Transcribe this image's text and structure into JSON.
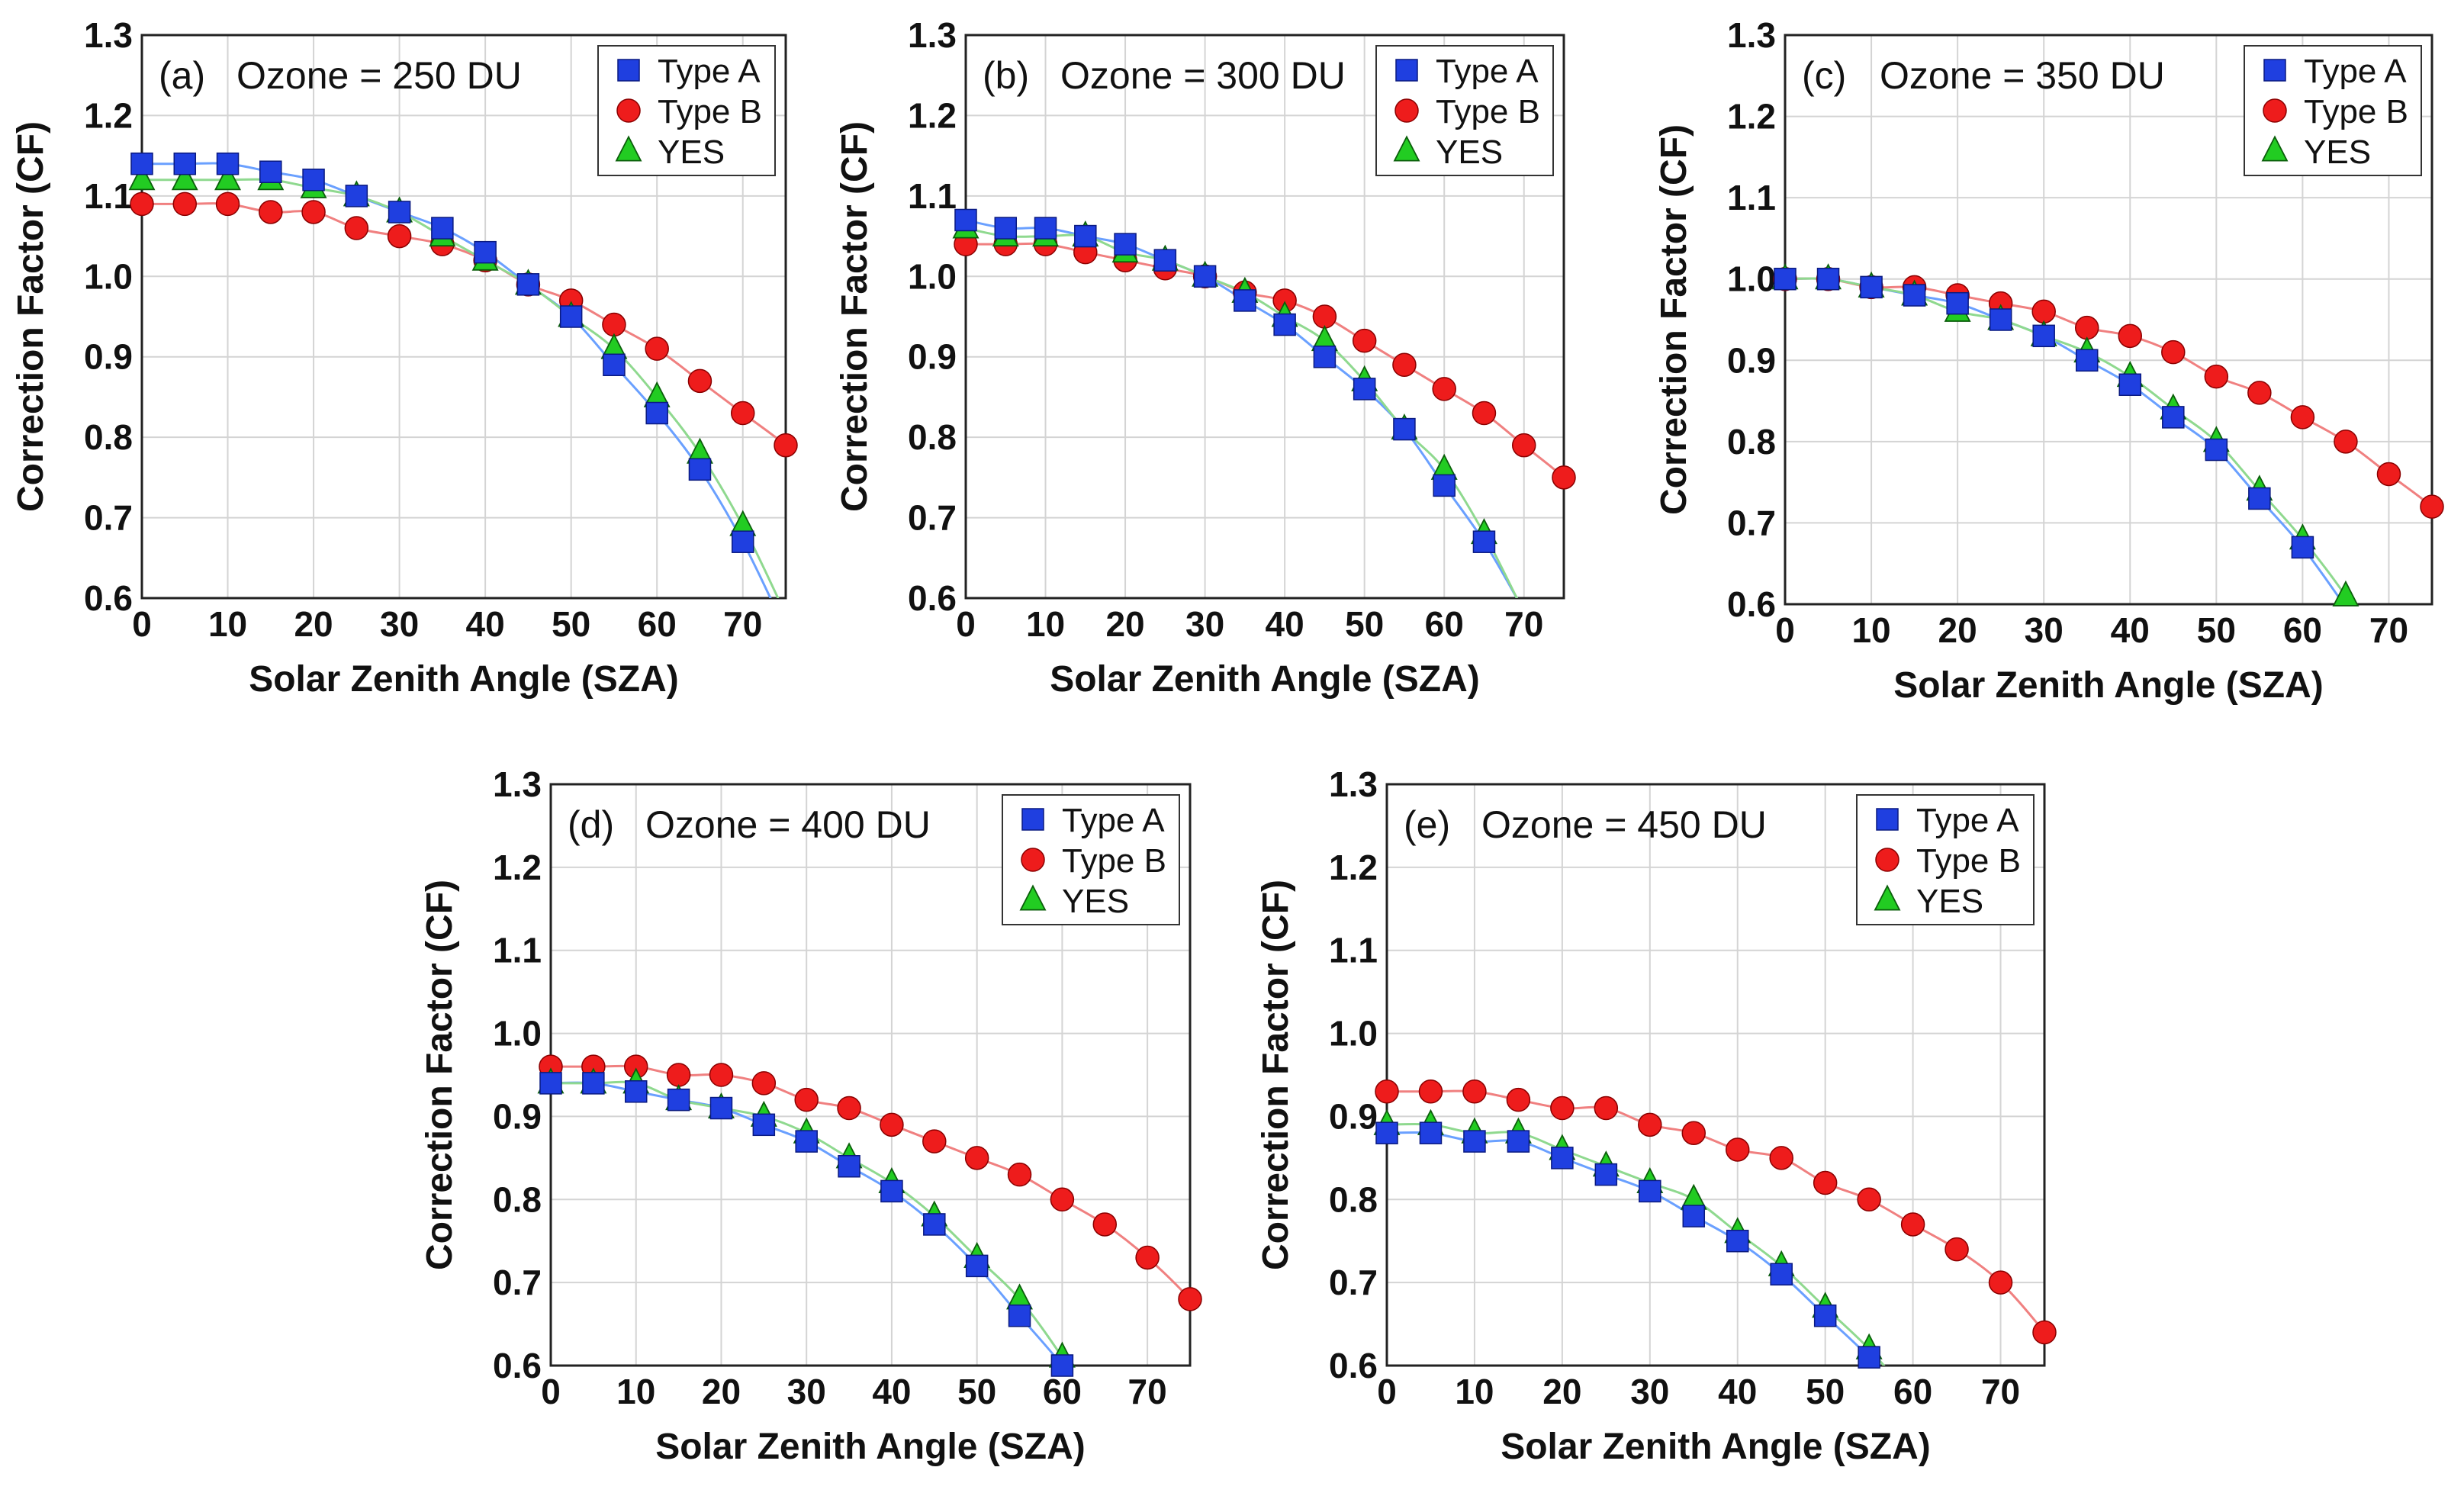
{
  "chart_data": [
    {
      "type": "line",
      "panel_label": "(a)",
      "title": "Ozone = 250 DU",
      "xlabel": "Solar Zenith Angle (SZA)",
      "ylabel": "Correction Factor (CF)",
      "xlim": [
        0,
        75
      ],
      "ylim": [
        0.6,
        1.3
      ],
      "xticks": [
        "0",
        "10",
        "20",
        "30",
        "40",
        "50",
        "60",
        "70"
      ],
      "yticks": [
        "0.6",
        "0.7",
        "0.8",
        "0.9",
        "1.0",
        "1.1",
        "1.2",
        "1.3"
      ],
      "grid": true,
      "legend_position": "top-right",
      "series": [
        {
          "name": "Type A",
          "marker": "square",
          "color": "#1f3fe0",
          "line_color": "#6aa0ff",
          "x": [
            0,
            5,
            10,
            15,
            20,
            25,
            30,
            35,
            40,
            45,
            50,
            55,
            60,
            65,
            70
          ],
          "y": [
            1.14,
            1.14,
            1.14,
            1.13,
            1.12,
            1.1,
            1.08,
            1.06,
            1.03,
            0.99,
            0.95,
            0.89,
            0.83,
            0.76,
            0.67
          ]
        },
        {
          "name": "Type B",
          "marker": "circle",
          "color": "#ee1c1c",
          "line_color": "#f08080",
          "x": [
            0,
            5,
            10,
            15,
            20,
            25,
            30,
            35,
            40,
            45,
            50,
            55,
            60,
            65,
            70,
            75
          ],
          "y": [
            1.09,
            1.09,
            1.09,
            1.08,
            1.08,
            1.06,
            1.05,
            1.04,
            1.02,
            0.99,
            0.97,
            0.94,
            0.91,
            0.87,
            0.83,
            0.79
          ]
        },
        {
          "name": "YES",
          "marker": "triangle",
          "color": "#22cc22",
          "line_color": "#8fd98f",
          "x": [
            0,
            5,
            10,
            15,
            20,
            25,
            30,
            35,
            40,
            45,
            50,
            55,
            60,
            65,
            70
          ],
          "y": [
            1.12,
            1.12,
            1.12,
            1.12,
            1.11,
            1.1,
            1.08,
            1.05,
            1.02,
            0.99,
            0.95,
            0.91,
            0.85,
            0.78,
            0.69
          ]
        }
      ]
    },
    {
      "type": "line",
      "panel_label": "(b)",
      "title": "Ozone = 300 DU",
      "xlabel": "Solar Zenith Angle (SZA)",
      "ylabel": "Correction Factor (CF)",
      "xlim": [
        0,
        75
      ],
      "ylim": [
        0.6,
        1.3
      ],
      "xticks": [
        "0",
        "10",
        "20",
        "30",
        "40",
        "50",
        "60",
        "70"
      ],
      "yticks": [
        "0.6",
        "0.7",
        "0.8",
        "0.9",
        "1.0",
        "1.1",
        "1.2",
        "1.3"
      ],
      "grid": true,
      "legend_position": "top-right",
      "series": [
        {
          "name": "Type A",
          "marker": "square",
          "color": "#1f3fe0",
          "line_color": "#6aa0ff",
          "x": [
            0,
            5,
            10,
            15,
            20,
            25,
            30,
            35,
            40,
            45,
            50,
            55,
            60,
            65
          ],
          "y": [
            1.07,
            1.06,
            1.06,
            1.05,
            1.04,
            1.02,
            1.0,
            0.97,
            0.94,
            0.9,
            0.86,
            0.81,
            0.74,
            0.67
          ]
        },
        {
          "name": "Type B",
          "marker": "circle",
          "color": "#ee1c1c",
          "line_color": "#f08080",
          "x": [
            0,
            5,
            10,
            15,
            20,
            25,
            30,
            35,
            40,
            45,
            50,
            55,
            60,
            65,
            70,
            75
          ],
          "y": [
            1.04,
            1.04,
            1.04,
            1.03,
            1.02,
            1.01,
            1.0,
            0.98,
            0.97,
            0.95,
            0.92,
            0.89,
            0.86,
            0.83,
            0.79,
            0.75
          ]
        },
        {
          "name": "YES",
          "marker": "triangle",
          "color": "#22cc22",
          "line_color": "#8fd98f",
          "x": [
            0,
            5,
            10,
            15,
            20,
            25,
            30,
            35,
            40,
            45,
            50,
            55,
            60,
            65
          ],
          "y": [
            1.06,
            1.05,
            1.05,
            1.05,
            1.03,
            1.02,
            1.0,
            0.98,
            0.95,
            0.92,
            0.87,
            0.81,
            0.76,
            0.68
          ]
        }
      ]
    },
    {
      "type": "line",
      "panel_label": "(c)",
      "title": "Ozone = 350 DU",
      "xlabel": "Solar Zenith Angle (SZA)",
      "ylabel": "Correction Factor (CF)",
      "xlim": [
        0,
        75
      ],
      "ylim": [
        0.6,
        1.3
      ],
      "xticks": [
        "0",
        "10",
        "20",
        "30",
        "40",
        "50",
        "60",
        "70"
      ],
      "yticks": [
        "0.6",
        "0.7",
        "0.8",
        "0.9",
        "1.0",
        "1.1",
        "1.2",
        "1.3"
      ],
      "grid": true,
      "legend_position": "top-right",
      "series": [
        {
          "name": "Type A",
          "marker": "square",
          "color": "#1f3fe0",
          "line_color": "#6aa0ff",
          "x": [
            0,
            5,
            10,
            15,
            20,
            25,
            30,
            35,
            40,
            45,
            50,
            55,
            60
          ],
          "y": [
            1.0,
            1.0,
            0.99,
            0.98,
            0.97,
            0.95,
            0.93,
            0.9,
            0.87,
            0.83,
            0.79,
            0.73,
            0.67
          ]
        },
        {
          "name": "Type B",
          "marker": "circle",
          "color": "#ee1c1c",
          "line_color": "#f08080",
          "x": [
            0,
            5,
            10,
            15,
            20,
            25,
            30,
            35,
            40,
            45,
            50,
            55,
            60,
            65,
            70,
            75
          ],
          "y": [
            1.0,
            1.0,
            0.99,
            0.99,
            0.98,
            0.97,
            0.96,
            0.94,
            0.93,
            0.91,
            0.88,
            0.86,
            0.83,
            0.8,
            0.76,
            0.72
          ]
        },
        {
          "name": "YES",
          "marker": "triangle",
          "color": "#22cc22",
          "line_color": "#8fd98f",
          "x": [
            0,
            5,
            10,
            15,
            20,
            25,
            30,
            35,
            40,
            45,
            50,
            55,
            60,
            65
          ],
          "y": [
            1.0,
            1.0,
            0.99,
            0.98,
            0.96,
            0.95,
            0.93,
            0.91,
            0.88,
            0.84,
            0.8,
            0.74,
            0.68,
            0.61
          ]
        }
      ]
    },
    {
      "type": "line",
      "panel_label": "(d)",
      "title": "Ozone = 400 DU",
      "xlabel": "Solar Zenith Angle (SZA)",
      "ylabel": "Correction Factor (CF)",
      "xlim": [
        0,
        75
      ],
      "ylim": [
        0.6,
        1.3
      ],
      "xticks": [
        "0",
        "10",
        "20",
        "30",
        "40",
        "50",
        "60",
        "70"
      ],
      "yticks": [
        "0.6",
        "0.7",
        "0.8",
        "0.9",
        "1.0",
        "1.1",
        "1.2",
        "1.3"
      ],
      "grid": true,
      "legend_position": "top-right",
      "series": [
        {
          "name": "Type A",
          "marker": "square",
          "color": "#1f3fe0",
          "line_color": "#6aa0ff",
          "x": [
            0,
            5,
            10,
            15,
            20,
            25,
            30,
            35,
            40,
            45,
            50,
            55,
            60
          ],
          "y": [
            0.94,
            0.94,
            0.93,
            0.92,
            0.91,
            0.89,
            0.87,
            0.84,
            0.81,
            0.77,
            0.72,
            0.66,
            0.6
          ]
        },
        {
          "name": "Type B",
          "marker": "circle",
          "color": "#ee1c1c",
          "line_color": "#f08080",
          "x": [
            0,
            5,
            10,
            15,
            20,
            25,
            30,
            35,
            40,
            45,
            50,
            55,
            60,
            65,
            70,
            75
          ],
          "y": [
            0.96,
            0.96,
            0.96,
            0.95,
            0.95,
            0.94,
            0.92,
            0.91,
            0.89,
            0.87,
            0.85,
            0.83,
            0.8,
            0.77,
            0.73,
            0.68
          ]
        },
        {
          "name": "YES",
          "marker": "triangle",
          "color": "#22cc22",
          "line_color": "#8fd98f",
          "x": [
            0,
            5,
            10,
            15,
            20,
            25,
            30,
            35,
            40,
            45,
            50,
            55,
            60
          ],
          "y": [
            0.94,
            0.94,
            0.94,
            0.92,
            0.91,
            0.9,
            0.88,
            0.85,
            0.82,
            0.78,
            0.73,
            0.68,
            0.61
          ]
        }
      ]
    },
    {
      "type": "line",
      "panel_label": "(e)",
      "title": "Ozone = 450 DU",
      "xlabel": "Solar Zenith Angle (SZA)",
      "ylabel": "Correction Factor (CF)",
      "xlim": [
        0,
        75
      ],
      "ylim": [
        0.6,
        1.3
      ],
      "xticks": [
        "0",
        "10",
        "20",
        "30",
        "40",
        "50",
        "60",
        "70"
      ],
      "yticks": [
        "0.6",
        "0.7",
        "0.8",
        "0.9",
        "1.0",
        "1.1",
        "1.2",
        "1.3"
      ],
      "grid": true,
      "legend_position": "top-right",
      "series": [
        {
          "name": "Type A",
          "marker": "square",
          "color": "#1f3fe0",
          "line_color": "#6aa0ff",
          "x": [
            0,
            5,
            10,
            15,
            20,
            25,
            30,
            35,
            40,
            45,
            50,
            55
          ],
          "y": [
            0.88,
            0.88,
            0.87,
            0.87,
            0.85,
            0.83,
            0.81,
            0.78,
            0.75,
            0.71,
            0.66,
            0.61
          ]
        },
        {
          "name": "Type B",
          "marker": "circle",
          "color": "#ee1c1c",
          "line_color": "#f08080",
          "x": [
            0,
            5,
            10,
            15,
            20,
            25,
            30,
            35,
            40,
            45,
            50,
            55,
            60,
            65,
            70,
            75
          ],
          "y": [
            0.93,
            0.93,
            0.93,
            0.92,
            0.91,
            0.91,
            0.89,
            0.88,
            0.86,
            0.85,
            0.82,
            0.8,
            0.77,
            0.74,
            0.7,
            0.64
          ]
        },
        {
          "name": "YES",
          "marker": "triangle",
          "color": "#22cc22",
          "line_color": "#8fd98f",
          "x": [
            0,
            5,
            10,
            15,
            20,
            25,
            30,
            35,
            40,
            45,
            50,
            55
          ],
          "y": [
            0.89,
            0.89,
            0.88,
            0.88,
            0.86,
            0.84,
            0.82,
            0.8,
            0.76,
            0.72,
            0.67,
            0.62
          ]
        }
      ]
    }
  ]
}
